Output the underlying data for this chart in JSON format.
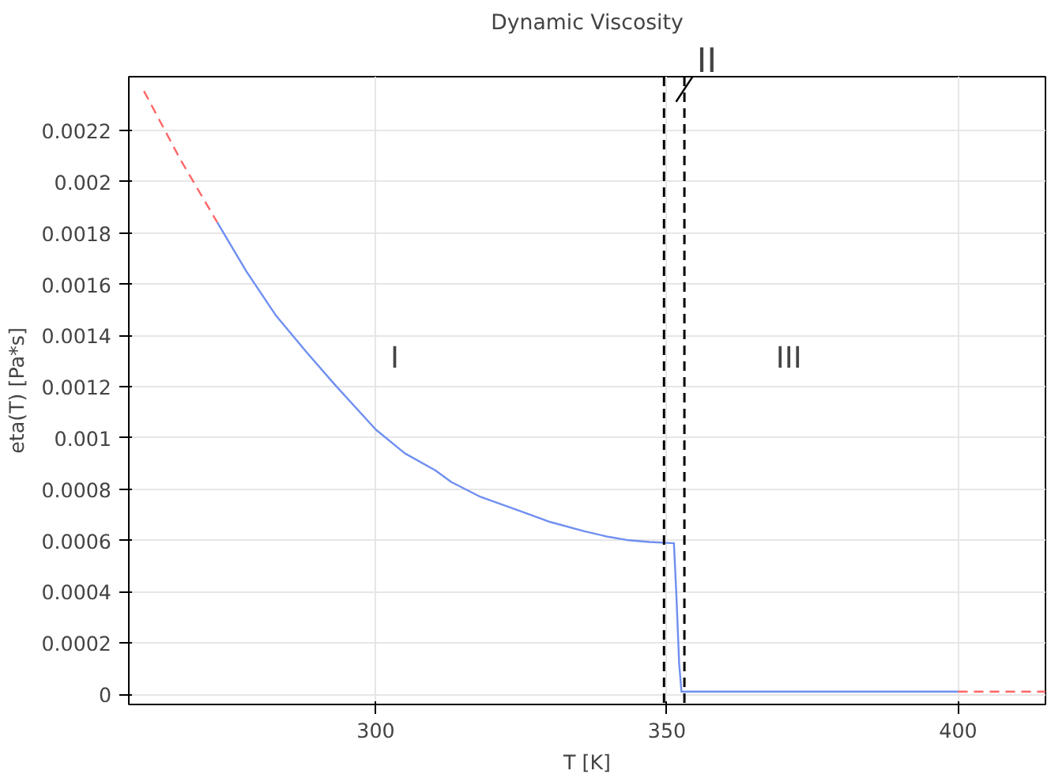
{
  "chart_data": {
    "type": "line",
    "title": "Dynamic Viscosity",
    "xlabel": "T [K]",
    "ylabel": "eta(T) [Pa*s]",
    "xlim": [
      257.6,
      415
    ],
    "ylim": [
      -4e-05,
      0.00241
    ],
    "xticks": [
      300,
      350,
      400
    ],
    "yticks": [
      0,
      0.0002,
      0.0004,
      0.0006,
      0.0008,
      0.001,
      0.0012,
      0.0014,
      0.0016,
      0.0018,
      0.002,
      0.0022
    ],
    "grid": true,
    "marker": "none",
    "series": [
      {
        "color": "#ff6666",
        "line_style": "dashed",
        "x": [
          260.2,
          266.5,
          272.8
        ],
        "values": [
          0.002354,
          0.002085,
          0.001841
        ]
      },
      {
        "color": "#6f8ff0",
        "line_style": "solid",
        "x": [
          272.8,
          277.8,
          282.8,
          288.3,
          292.9,
          300,
          305,
          310.2,
          313,
          318,
          324.8,
          330,
          335.8,
          340,
          343.1,
          347,
          350.8,
          351.2,
          351.6,
          352.1,
          352.5,
          360,
          380,
          400
        ],
        "values": [
          0.001841,
          0.00165,
          0.00148,
          0.00133,
          0.00121,
          0.001033,
          0.00094,
          0.000874,
          0.000828,
          0.00077,
          0.000715,
          0.000672,
          0.000636,
          0.000614,
          0.000602,
          0.000594,
          0.00059,
          0.00059,
          0.0004,
          0.00012,
          1e-05,
          1e-05,
          1e-05,
          1e-05
        ]
      },
      {
        "color": "#ff6666",
        "line_style": "dashed",
        "x": [
          400,
          415
        ],
        "values": [
          1e-05,
          1e-05
        ]
      }
    ],
    "ref_lines": [
      {
        "axis": "x",
        "value": 349.5,
        "color": "#000000",
        "line_style": "dashed"
      },
      {
        "axis": "x",
        "value": 353,
        "color": "#000000",
        "line_style": "dashed"
      }
    ],
    "annotations": [
      "I",
      "II",
      "III"
    ]
  }
}
